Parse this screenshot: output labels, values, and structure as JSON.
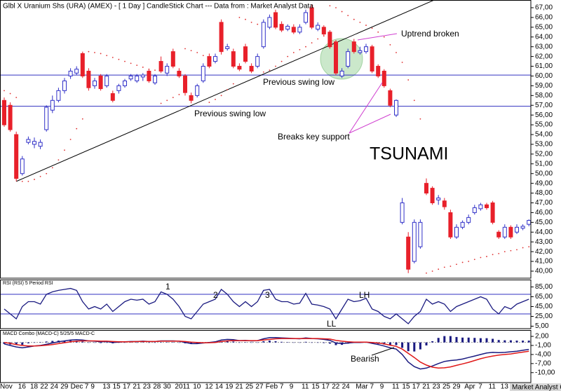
{
  "chart_data": [
    {
      "type": "candlestick",
      "title": "Glbl X Uranium Shs (URA) (AMEX) - [ 1 Day ] CandleStick Chart --- Data from : Market Analyst Data",
      "categories": [
        "Nov",
        null,
        null,
        "16",
        null,
        "18",
        "22",
        null,
        "24",
        "29",
        null,
        "Dec",
        null,
        null,
        "7",
        "9",
        null,
        "13",
        "15",
        null,
        "17",
        null,
        "21",
        "23",
        null,
        "28",
        "30",
        null,
        null,
        "2011",
        null,
        null,
        "10",
        null,
        "12",
        "14",
        null,
        "19",
        "21",
        null,
        "25",
        null,
        "27",
        null,
        "Feb",
        null,
        "7",
        null,
        "9",
        null,
        "11",
        "15",
        null,
        "17",
        null,
        "22",
        "24",
        null,
        null,
        "Mar",
        null,
        "7",
        null,
        "9",
        null,
        "11",
        "15",
        null,
        "17",
        null,
        "21",
        "23",
        null,
        "25",
        null,
        "29",
        null,
        "Apr",
        null,
        "7",
        null,
        "11",
        null,
        "13",
        null,
        null,
        null,
        null
      ],
      "open": [
        57.5,
        57,
        54,
        50,
        53.2,
        53,
        52.8,
        54.5,
        56.5,
        57.5,
        58.5,
        60,
        60.3,
        62.3,
        60.5,
        59,
        60,
        59,
        58.2,
        58.5,
        59,
        59.7,
        59.5,
        59.9,
        60.5,
        59.3,
        61.5,
        60.3,
        62.5,
        60.5,
        60,
        58,
        58,
        59.5,
        62,
        61.5,
        65.5,
        62.8,
        62.5,
        61,
        63,
        61,
        61,
        63,
        65,
        66.5,
        65.3,
        64.8,
        65,
        64.5,
        65.5,
        67,
        64.8,
        65,
        64.5,
        63.5,
        60,
        61,
        63.5,
        62.4,
        62.5,
        63,
        61,
        60.5,
        58.5,
        56,
        45,
        43.5,
        41,
        42.5,
        49,
        48.5,
        47.3,
        47.2,
        46,
        43.5,
        44.5,
        45,
        46,
        46.4,
        46.8,
        47,
        44,
        43.5,
        44.5,
        44,
        44.4,
        44.8
      ],
      "high": [
        57.8,
        57.3,
        54.3,
        51.8,
        53.8,
        53.7,
        53.5,
        57,
        58,
        58.8,
        59.8,
        60.8,
        61,
        62.5,
        60.8,
        59.8,
        60.2,
        60.2,
        58.5,
        59.2,
        59.7,
        60.2,
        60.2,
        60.3,
        60.7,
        60.2,
        62,
        61.3,
        62.8,
        60.8,
        60.2,
        58.3,
        59.2,
        61.3,
        62.3,
        62.3,
        65.8,
        63.3,
        62.8,
        61.3,
        63.3,
        61.3,
        62.3,
        65.8,
        66.3,
        66.8,
        65.6,
        65.3,
        65.3,
        65.3,
        66.8,
        67.3,
        65.5,
        65.2,
        64.7,
        63.7,
        60.8,
        62.8,
        63.8,
        63,
        63.3,
        63.2,
        61.2,
        60.7,
        58.7,
        57.6,
        47.5,
        44,
        45.3,
        45.3,
        49.5,
        48.7,
        47.8,
        47.5,
        46.3,
        44.8,
        45.2,
        45.8,
        46.8,
        47,
        47,
        47.2,
        44.2,
        44.8,
        44.7,
        44.8,
        44.8,
        45.3
      ],
      "low": [
        54.8,
        54.3,
        49.2,
        49.8,
        53,
        52.6,
        52.5,
        54.3,
        56.2,
        57.3,
        58.2,
        59.7,
        60.1,
        59.8,
        58.5,
        58.7,
        58.5,
        58.8,
        57.3,
        58.2,
        58.8,
        59.5,
        59.3,
        59.5,
        59.3,
        59.1,
        60.3,
        60,
        60.8,
        59.8,
        58,
        57.2,
        57.8,
        59.3,
        60.8,
        61.3,
        62.2,
        62.6,
        60.8,
        60.5,
        61.3,
        60.3,
        60.8,
        62.8,
        64.8,
        64.8,
        64.5,
        64.6,
        64.3,
        64.3,
        65.3,
        64.8,
        64.6,
        64.1,
        62.8,
        60.1,
        59.8,
        60.8,
        62.3,
        62.2,
        62.3,
        60.3,
        59.8,
        58.8,
        56.8,
        55.8,
        44.8,
        39.8,
        40.8,
        42.3,
        47.8,
        46.8,
        46.8,
        46.3,
        43.3,
        43.3,
        44.3,
        44.8,
        45.8,
        46.2,
        46.3,
        44.8,
        43.3,
        43.3,
        43.3,
        43.8,
        44.2,
        44.6
      ],
      "close": [
        55,
        54.5,
        49.5,
        51.5,
        53.5,
        53.3,
        53.2,
        56.8,
        57.5,
        58.5,
        59.5,
        60.5,
        60.7,
        60,
        58.8,
        59.5,
        58.7,
        60,
        57.5,
        59,
        59.5,
        60,
        60,
        60.1,
        59.5,
        60,
        60.5,
        61,
        61,
        60,
        58.3,
        57.5,
        59,
        61,
        61,
        62,
        62.5,
        63,
        61,
        60.7,
        61.5,
        60.5,
        62,
        65.5,
        66,
        65,
        64.7,
        65.1,
        64.5,
        65,
        66.5,
        65,
        65.2,
        64.3,
        63,
        60.3,
        60.5,
        62.5,
        62.5,
        62.6,
        63,
        60.5,
        60,
        59,
        57,
        57.5,
        47,
        40.2,
        45,
        45,
        48,
        47,
        47.5,
        46.6,
        43.5,
        44.5,
        45,
        45.5,
        46.5,
        46.8,
        46.5,
        45,
        43.5,
        44.5,
        43.5,
        44.5,
        44.6,
        45.2
      ],
      "sar": [
        58.5,
        58.2,
        57.8,
        49.2,
        49.2,
        49.4,
        49.7,
        50,
        50.6,
        51.4,
        52.4,
        53.5,
        54.6,
        55.6,
        62.5,
        62.4,
        62.3,
        62.1,
        61.9,
        61.7,
        61.5,
        61.3,
        61.1,
        60.9,
        60.7,
        60.6,
        57.2,
        57.5,
        57.8,
        58.1,
        62.8,
        62.6,
        62.4,
        62.1,
        57.3,
        57.6,
        58,
        58.6,
        59.2,
        66,
        65.8,
        65.5,
        65.3,
        60.4,
        60.6,
        61,
        61.5,
        62,
        62.4,
        62.7,
        63,
        63.4,
        63.8,
        64.1,
        67.2,
        67,
        66.6,
        66.2,
        65.8,
        65.5,
        65.2,
        64.9,
        64.5,
        64,
        63.2,
        62.4,
        61.4,
        59.6,
        57.5,
        55.6,
        39.8,
        40,
        40.2,
        40.4,
        40.5,
        40.7,
        40.9,
        41,
        41.2,
        41.4,
        41.5,
        41.7,
        41.8,
        42,
        42.1,
        42.2,
        42.4,
        42.5
      ],
      "up_color": "#3030c8",
      "down_color": "#e8202a",
      "sar_color": "#e03030",
      "ylim": [
        39.28,
        67.79
      ],
      "yticks": [
        {
          "value": 40,
          "label": "40,00"
        },
        {
          "value": 41,
          "label": "41,00"
        },
        {
          "value": 42,
          "label": "42,00"
        },
        {
          "value": 43,
          "label": "43,00"
        },
        {
          "value": 44,
          "label": "44,00"
        },
        {
          "value": 45,
          "label": "45,00"
        },
        {
          "value": 46,
          "label": "46,00"
        },
        {
          "value": 47,
          "label": "47,00"
        },
        {
          "value": 48,
          "label": "48,00"
        },
        {
          "value": 49,
          "label": "49,00"
        },
        {
          "value": 50,
          "label": "50,00"
        },
        {
          "value": 51,
          "label": "51,00"
        },
        {
          "value": 52,
          "label": "52,00"
        },
        {
          "value": 53,
          "label": "53,00"
        },
        {
          "value": 54,
          "label": "54,00"
        },
        {
          "value": 55,
          "label": "55,00"
        },
        {
          "value": 56,
          "label": "56,00"
        },
        {
          "value": 57,
          "label": "57,00"
        },
        {
          "value": 58,
          "label": "58,00"
        },
        {
          "value": 59,
          "label": "59,00"
        },
        {
          "value": 60,
          "label": "60,00"
        },
        {
          "value": 61,
          "label": "61,00"
        },
        {
          "value": 62,
          "label": "62,00"
        },
        {
          "value": 63,
          "label": "63,00"
        },
        {
          "value": 64,
          "label": "64,00"
        },
        {
          "value": 65,
          "label": "65,00"
        },
        {
          "value": 66,
          "label": "66,00"
        },
        {
          "value": 67,
          "label": "67,00"
        }
      ],
      "hlines": [
        60.1,
        56.9
      ],
      "hline_color": "#3030c0",
      "trendline": {
        "start": [
          2,
          49.2
        ],
        "end": [
          87,
          72
        ],
        "color": "#000000"
      },
      "annotations": [
        "Uptrend broken",
        "Previous swing low",
        "Previous swing low",
        "Breaks key support",
        "TSUNAMI"
      ]
    },
    {
      "type": "line",
      "title": "RSI (RSI) 5 Period RSI",
      "series": [
        {
          "color": "#1a1a80",
          "values": [
            40,
            30,
            20,
            45,
            55,
            55,
            50,
            70,
            75,
            78,
            80,
            82,
            78,
            55,
            40,
            45,
            40,
            50,
            35,
            45,
            55,
            60,
            58,
            60,
            50,
            55,
            75,
            70,
            60,
            45,
            25,
            20,
            35,
            50,
            55,
            60,
            80,
            70,
            55,
            45,
            55,
            45,
            55,
            78,
            80,
            60,
            55,
            55,
            50,
            52,
            72,
            50,
            48,
            45,
            40,
            20,
            40,
            60,
            55,
            57,
            62,
            40,
            35,
            25,
            20,
            30,
            20,
            10,
            25,
            35,
            60,
            50,
            55,
            50,
            35,
            45,
            50,
            55,
            60,
            65,
            60,
            40,
            30,
            45,
            40,
            50,
            55,
            60
          ]
        }
      ],
      "levels": [
        70,
        30
      ],
      "level_color": "#3030c0",
      "ylim": [
        0,
        100
      ],
      "yticks": [
        {
          "value": 85,
          "label": "85,00"
        },
        {
          "value": 65,
          "label": "65,00"
        },
        {
          "value": 45,
          "label": "45,00"
        },
        {
          "value": 25,
          "label": "25,00"
        },
        {
          "value": 5,
          "label": "5,00"
        }
      ],
      "annotations": [
        "1",
        "2",
        "3",
        "LH",
        "LL"
      ]
    },
    {
      "type": "macd",
      "title": "MACD Combo (MACD-C) 5/25/5 MACD-C",
      "series": [
        {
          "color": "#1a1a80",
          "values": [
            -0.5,
            -1,
            -1.5,
            -1.8,
            -1.5,
            -1.2,
            -1,
            -0.6,
            -0.2,
            0.2,
            0.5,
            0.8,
            0.9,
            0.8,
            0.5,
            0.4,
            0.2,
            0.3,
            0,
            0.1,
            0.2,
            0.3,
            0.3,
            0.4,
            0.3,
            0.3,
            0.5,
            0.5,
            0.5,
            0.4,
            0,
            -0.4,
            -0.4,
            -0.2,
            0,
            0.2,
            0.8,
            1,
            0.9,
            0.6,
            0.7,
            0.5,
            0.6,
            1.2,
            1.6,
            1.6,
            1.5,
            1.4,
            1.3,
            1.2,
            1.5,
            1.3,
            1.2,
            1,
            0.7,
            -0.2,
            -0.4,
            -0.2,
            0,
            0,
            0.1,
            -0.3,
            -0.7,
            -1.2,
            -1.8,
            -2.2,
            -4,
            -6.5,
            -8,
            -8.8,
            -8.5,
            -7.8,
            -7,
            -6.3,
            -6,
            -5.8,
            -5.5,
            -5,
            -4.5,
            -4,
            -3.5,
            -3.3,
            -3.4,
            -3.3,
            -3.1,
            -2.9,
            -2.6,
            -2.3
          ]
        },
        {
          "color": "#e01818",
          "values": [
            0,
            -0.3,
            -0.7,
            -1,
            -1.2,
            -1.2,
            -1.1,
            -0.9,
            -0.7,
            -0.4,
            -0.1,
            0.2,
            0.4,
            0.5,
            0.5,
            0.5,
            0.4,
            0.4,
            0.3,
            0.2,
            0.2,
            0.2,
            0.3,
            0.3,
            0.3,
            0.3,
            0.4,
            0.4,
            0.4,
            0.4,
            0.3,
            0.1,
            0,
            -0.1,
            -0.1,
            0,
            0.3,
            0.5,
            0.6,
            0.6,
            0.6,
            0.6,
            0.6,
            0.8,
            1,
            1.2,
            1.3,
            1.3,
            1.3,
            1.3,
            1.3,
            1.3,
            1.3,
            1.2,
            1.1,
            0.7,
            0.4,
            0.2,
            0.1,
            0.1,
            0.1,
            0,
            -0.2,
            -0.5,
            -0.9,
            -1.3,
            -2.2,
            -3.6,
            -5,
            -6.5,
            -7.5,
            -8.2,
            -8.5,
            -8.4,
            -8.1,
            -7.6,
            -7.1,
            -6.6,
            -6,
            -5.4,
            -4.9,
            -4.5,
            -4.2,
            -4,
            -3.8,
            -3.5,
            -3.2,
            -2.9
          ]
        }
      ],
      "histogram": {
        "color": "#1a1a80",
        "values": [
          -0.5,
          -0.7,
          -0.8,
          -0.8,
          -0.3,
          0,
          0.1,
          0.3,
          0.5,
          0.6,
          0.6,
          0.6,
          0.5,
          0.3,
          0,
          -0.1,
          -0.2,
          -0.1,
          -0.3,
          -0.1,
          0,
          0.1,
          0,
          0.1,
          0,
          0,
          0.1,
          0.1,
          0.1,
          0,
          -0.3,
          -0.5,
          -0.4,
          -0.1,
          0.1,
          0.2,
          0.5,
          0.5,
          0.3,
          0,
          0.1,
          -0.1,
          0,
          0.4,
          0.6,
          0.4,
          0.2,
          0.1,
          0,
          -0.1,
          0.2,
          0,
          -0.1,
          -0.2,
          -0.4,
          -0.9,
          -0.8,
          -0.4,
          -0.1,
          -0.1,
          0,
          -0.3,
          -0.5,
          -0.7,
          -0.9,
          -0.9,
          -1.8,
          -2.9,
          -3,
          -2.3,
          -1,
          0.4,
          1.5,
          2.1,
          2.1,
          1.8,
          1.6,
          1.6,
          1.5,
          1.4,
          1.4,
          1.2,
          0.8,
          0.7,
          0.7,
          0.6,
          0.6,
          0.6
        ]
      },
      "ylim": [
        -13.3,
        4.1
      ],
      "yticks": [
        {
          "value": 2,
          "label": "2,00"
        },
        {
          "value": -1,
          "label": "-1,00"
        },
        {
          "value": -4,
          "label": "-4,00"
        },
        {
          "value": -7,
          "label": "-7,00"
        },
        {
          "value": -10,
          "label": "-10,00"
        }
      ],
      "annotations": [
        "Bearish"
      ]
    }
  ],
  "footer": "Market Analyst 6"
}
